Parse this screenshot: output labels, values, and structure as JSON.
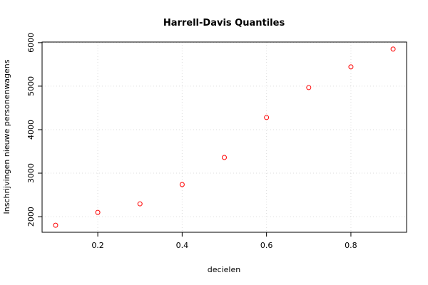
{
  "chart_data": {
    "type": "scatter",
    "title": "Harrell-Davis Quantiles",
    "x_label": "decielen",
    "y_label": "Inschrijvingen nieuwe personenwagens",
    "series": [
      {
        "color": "#ff0000",
        "x": [
          0.1,
          0.2,
          0.3,
          0.4,
          0.5,
          0.6,
          0.7,
          0.8,
          0.9
        ],
        "values": [
          1803,
          2098,
          2295,
          2738,
          3361,
          4279,
          4967,
          5443,
          5852
        ]
      }
    ],
    "xlim": [
      0.068,
      0.932
    ],
    "xticks": [
      0.2,
      0.4,
      0.6,
      0.8
    ],
    "ylim": [
      1641,
      6014
    ],
    "yticks": [
      2000,
      3000,
      4000,
      5000,
      6000
    ],
    "grid": true
  }
}
